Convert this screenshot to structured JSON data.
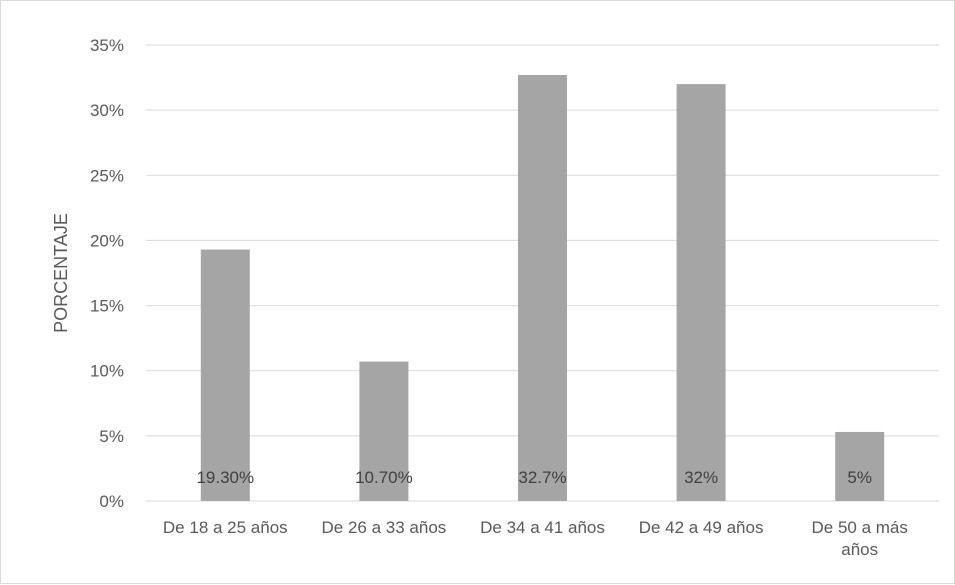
{
  "chart_data": {
    "type": "bar",
    "title": "",
    "xlabel": "",
    "ylabel": "PORCENTAJE",
    "ylim": [
      0,
      35
    ],
    "y_ticks": [
      "0%",
      "5%",
      "10%",
      "15%",
      "20%",
      "25%",
      "30%",
      "35%"
    ],
    "grid": true,
    "categories": [
      [
        "De 18 a 25 años"
      ],
      [
        "De 26 a 33 años"
      ],
      [
        "De 34 a 41 años"
      ],
      [
        "De 42 a 49 años"
      ],
      [
        "De 50 a más",
        "años"
      ]
    ],
    "values": [
      19.3,
      10.7,
      32.7,
      32,
      5.3
    ],
    "data_labels": [
      "19.30%",
      "10.70%",
      "32.7%",
      "32%",
      "5%"
    ],
    "colors": {
      "bar": "#a5a5a5",
      "grid": "#d9d9d9"
    }
  }
}
